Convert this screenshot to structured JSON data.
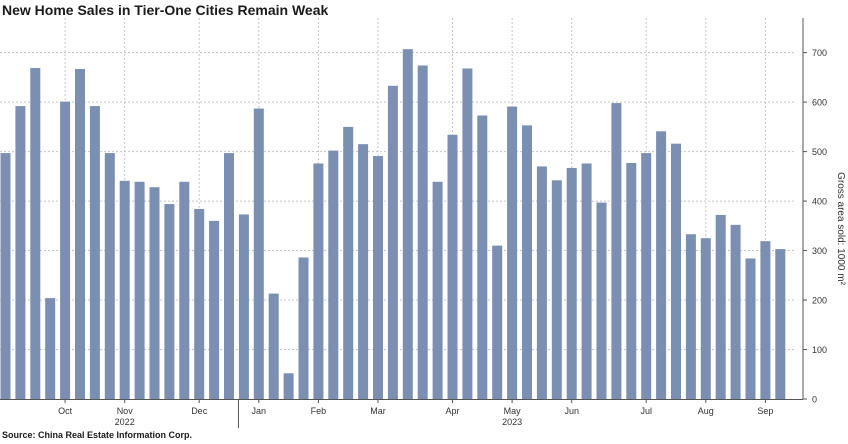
{
  "title": "New Home Sales in Tier-One Cities Remain Weak",
  "source": "Source: China Real Estate Information Corp.",
  "chart_data": {
    "type": "bar",
    "title": "New Home Sales in Tier-One Cities Remain Weak",
    "ylabel": "Gross area sold: 1000 m²",
    "ylim": [
      0,
      770
    ],
    "yticks": [
      0,
      100,
      200,
      300,
      400,
      500,
      600,
      700
    ],
    "grid": true,
    "bar_color": "#7a8fb2",
    "values": [
      497,
      592,
      669,
      204,
      601,
      667,
      592,
      497,
      441,
      439,
      428,
      394,
      439,
      384,
      360,
      497,
      373,
      587,
      213,
      52,
      286,
      476,
      502,
      550,
      515,
      491,
      633,
      707,
      674,
      439,
      534,
      668,
      573,
      310,
      591,
      553,
      470,
      442,
      467,
      476,
      397,
      598,
      477,
      497,
      541,
      516,
      333,
      325,
      372,
      352,
      284,
      319,
      303
    ],
    "x_tick_labels": [
      "Oct",
      "Nov",
      "Dec",
      "Jan",
      "Feb",
      "Mar",
      "Apr",
      "May",
      "Jun",
      "Jul",
      "Aug",
      "Sep"
    ],
    "x_tick_bar_index": [
      4,
      8,
      13,
      17,
      21,
      25,
      30,
      34,
      38,
      43,
      47,
      51
    ],
    "years": [
      {
        "label": "2022",
        "bar_index": 8
      },
      {
        "label": "2023",
        "bar_index": 34
      }
    ],
    "year_separator_bar_index": 15.5
  }
}
